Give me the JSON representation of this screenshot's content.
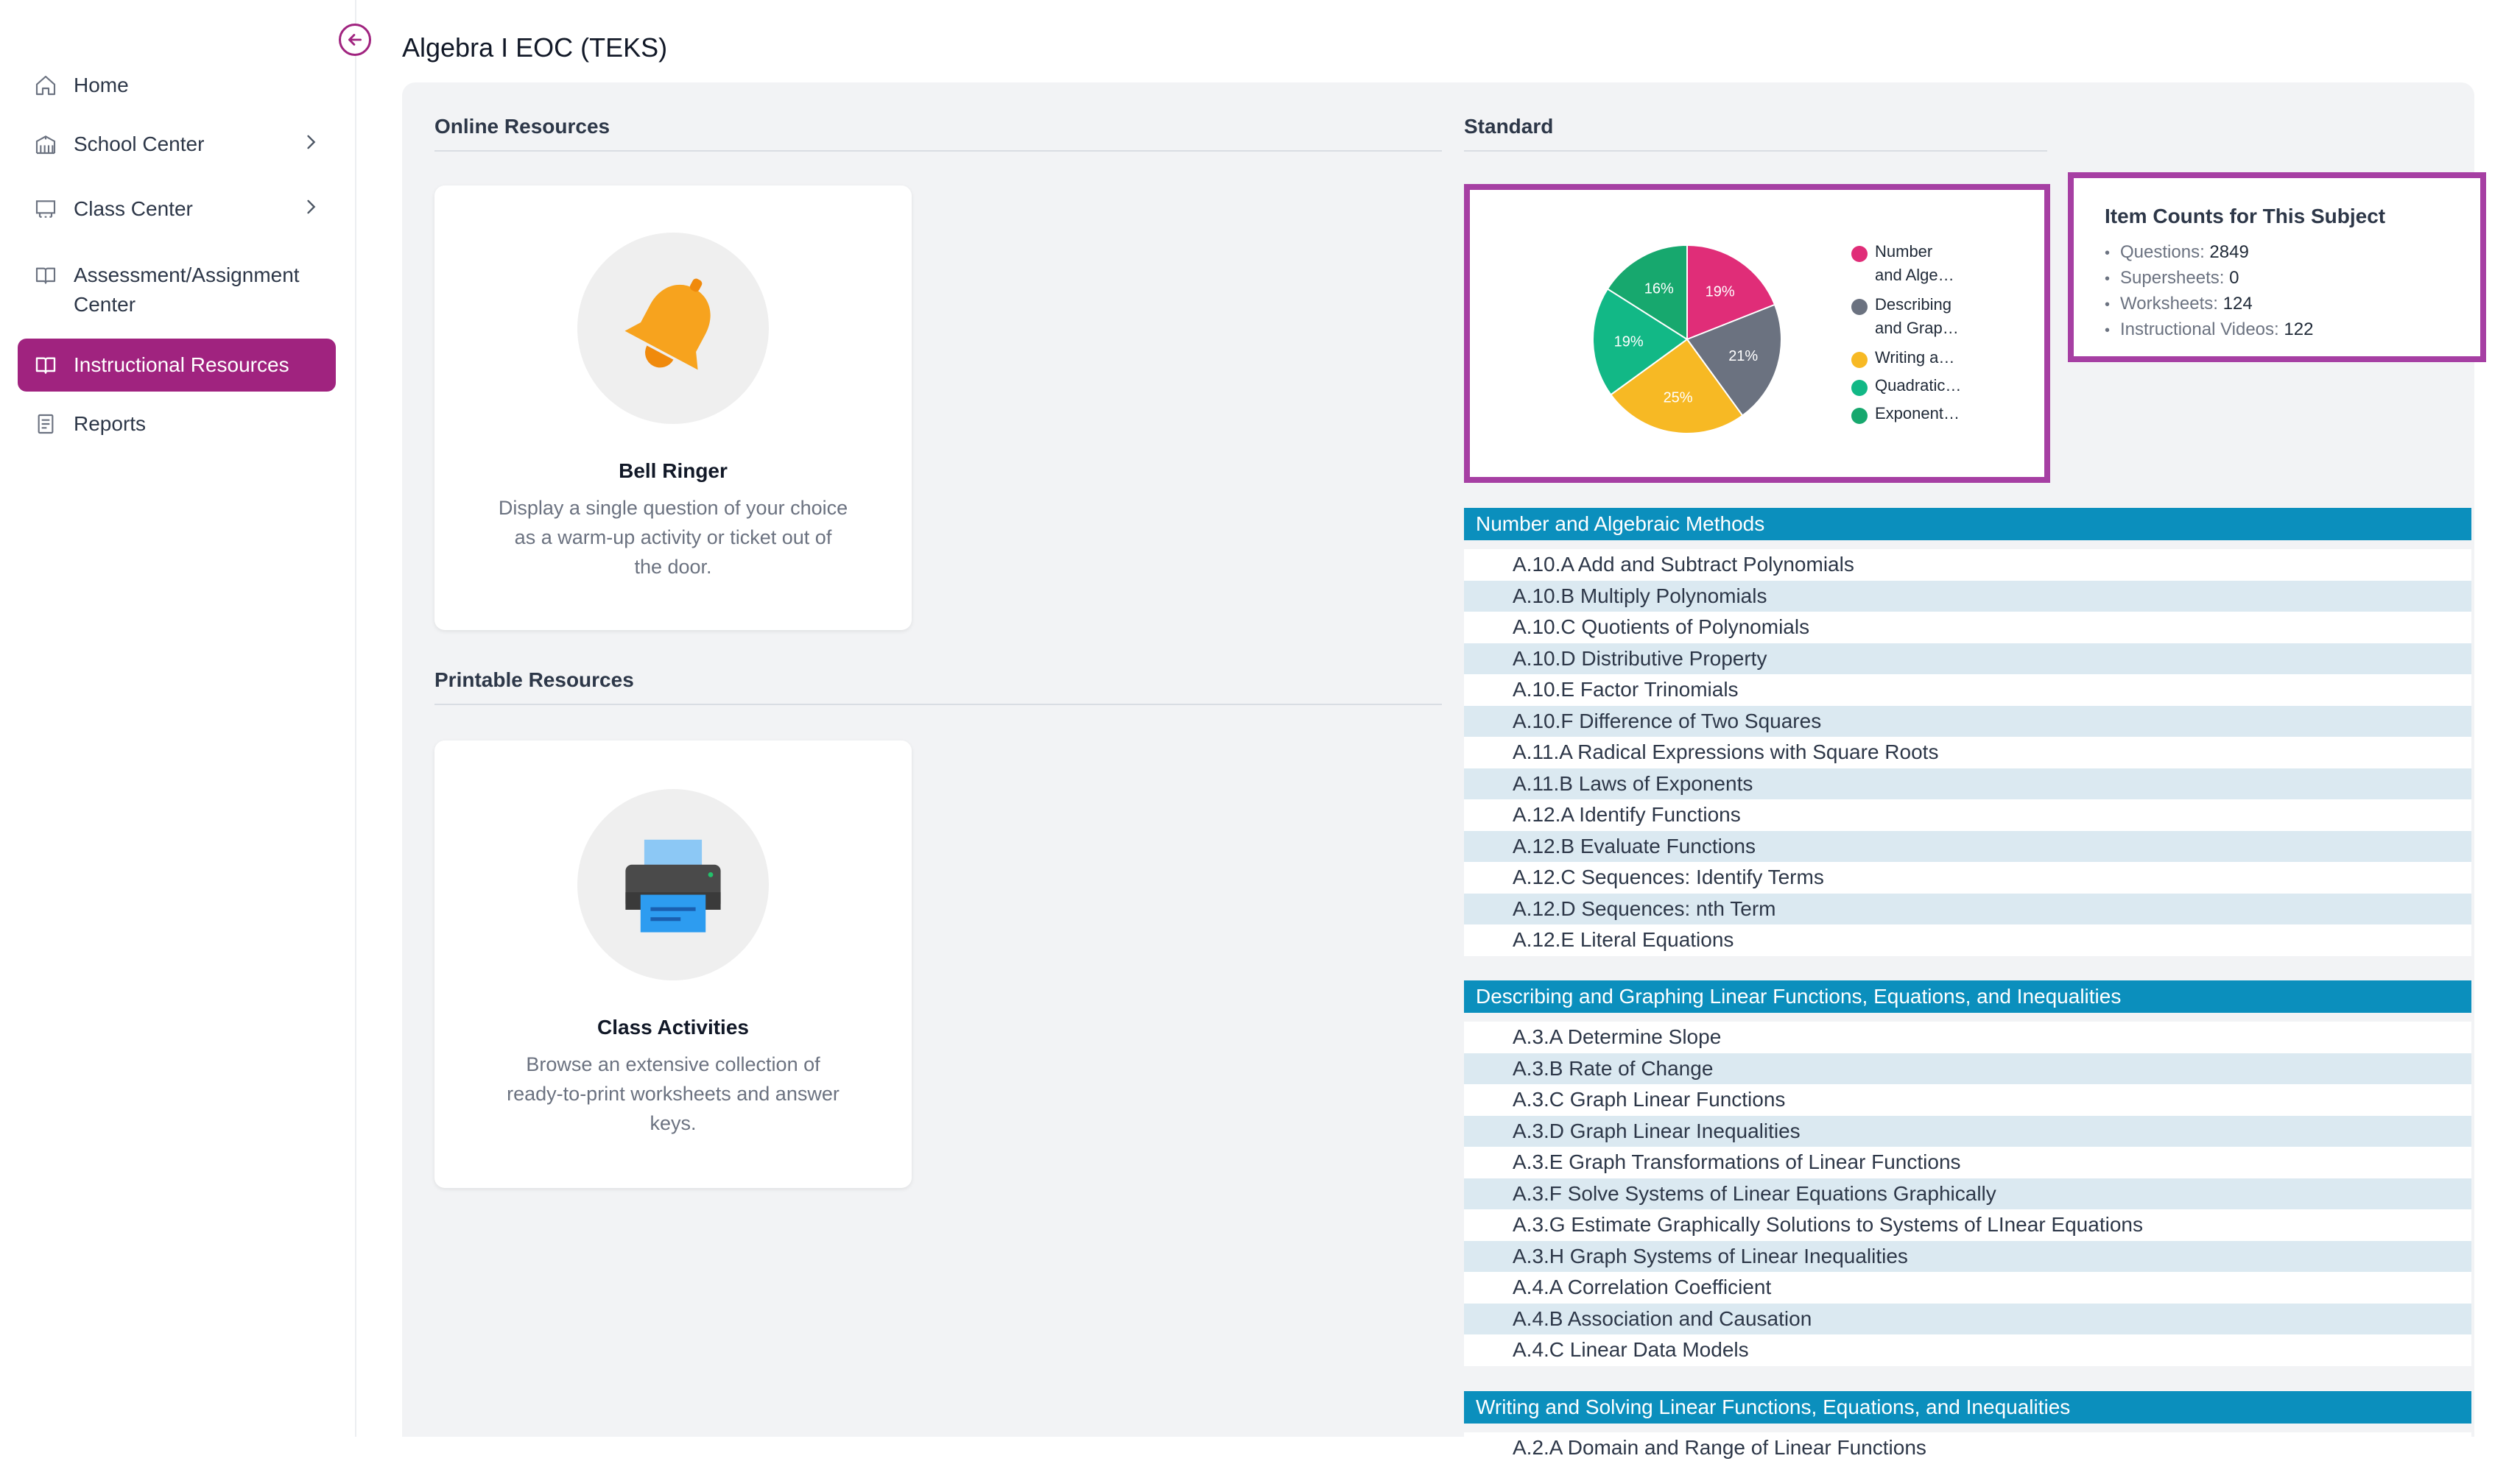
{
  "title": "Algebra I EOC (TEKS)",
  "sidebar": {
    "items": [
      {
        "label": "Home"
      },
      {
        "label": "School Center"
      },
      {
        "label": "Class Center"
      },
      {
        "label": "Assessment/Assignment",
        "label2": "Center"
      },
      {
        "label": "Instructional Resources"
      },
      {
        "label": "Reports"
      }
    ]
  },
  "online_resources": {
    "heading": "Online Resources",
    "card": {
      "title": "Bell Ringer",
      "desc_lines": [
        "Display a single question of your choice",
        "as a warm-up activity or ticket out of",
        "the door."
      ],
      "icon": "bell-icon"
    }
  },
  "printable_resources": {
    "heading": "Printable Resources",
    "card": {
      "title": "Class Activities",
      "desc_lines": [
        "Browse an extensive collection of",
        "ready-to-print worksheets and answer",
        "keys."
      ],
      "icon": "printer-icon"
    }
  },
  "standard": {
    "heading": "Standard"
  },
  "chart_data": {
    "type": "pie",
    "slices": [
      {
        "legend_line1": "Number",
        "legend_line2": "and Alge…",
        "value": 19,
        "label": "19%",
        "color": "#e02d78"
      },
      {
        "legend_line1": "Describing",
        "legend_line2": "and Grap…",
        "value": 21,
        "label": "21%",
        "color": "#6b7280"
      },
      {
        "legend_line1": "Writing a…",
        "legend_line2": "",
        "value": 25,
        "label": "25%",
        "color": "#f7b924"
      },
      {
        "legend_line1": "Quadratic…",
        "legend_line2": "",
        "value": 19,
        "label": "19%",
        "color": "#12b886"
      },
      {
        "legend_line1": "Exponent…",
        "legend_line2": "",
        "value": 16,
        "label": "16%",
        "color": "#17a86e"
      }
    ]
  },
  "item_counts": {
    "title": "Item Counts for This Subject",
    "rows": [
      {
        "label": "Questions:",
        "value": "2849"
      },
      {
        "label": "Supersheets:",
        "value": "0"
      },
      {
        "label": "Worksheets:",
        "value": "124"
      },
      {
        "label": "Instructional Videos:",
        "value": "122"
      }
    ]
  },
  "standards": [
    {
      "heading": "Number and Algebraic Methods",
      "rows": [
        "A.10.A Add and Subtract Polynomials",
        "A.10.B Multiply Polynomials",
        "A.10.C Quotients of Polynomials",
        "A.10.D Distributive Property",
        "A.10.E Factor Trinomials",
        "A.10.F Difference of Two Squares",
        "A.11.A Radical Expressions with Square Roots",
        "A.11.B Laws of Exponents",
        "A.12.A Identify Functions",
        "A.12.B Evaluate Functions",
        "A.12.C Sequences: Identify Terms",
        "A.12.D Sequences: nth Term",
        "A.12.E Literal Equations"
      ]
    },
    {
      "heading": "Describing and Graphing Linear Functions, Equations, and Inequalities",
      "rows": [
        "A.3.A Determine Slope",
        "A.3.B Rate of Change",
        "A.3.C Graph Linear Functions",
        "A.3.D Graph Linear Inequalities",
        "A.3.E Graph Transformations of Linear Functions",
        "A.3.F Solve Systems of Linear Equations Graphically",
        "A.3.G Estimate Graphically Solutions to Systems of LInear Equations",
        "A.3.H Graph Systems of Linear Inequalities",
        "A.4.A Correlation Coefficient",
        "A.4.B Association and Causation",
        "A.4.C Linear Data Models"
      ]
    },
    {
      "heading": "Writing and Solving Linear Functions, Equations, and Inequalities",
      "rows": [
        "A.2.A Domain and Range of Linear Functions"
      ]
    }
  ]
}
